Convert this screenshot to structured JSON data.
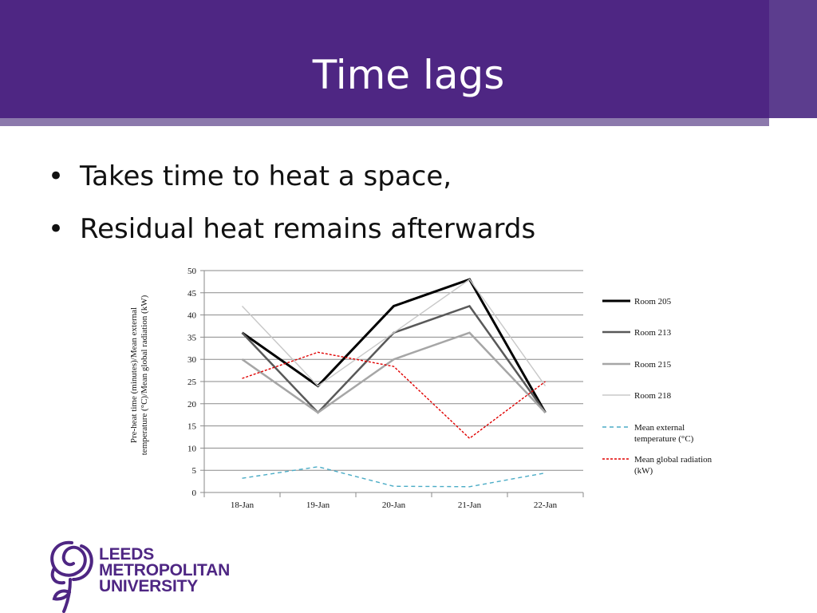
{
  "slide": {
    "title": "Time lags",
    "bullets": [
      "Takes time to heat a space,",
      "Residual heat remains afterwards"
    ]
  },
  "logo": {
    "lines": [
      "LEEDS",
      "METROPOLITAN",
      "UNIVERSITY"
    ]
  },
  "colors": {
    "header": "#4e2683",
    "accent_strip": "#8c79ac",
    "logo": "#4e2683"
  },
  "chart_data": {
    "type": "line",
    "categories": [
      "18-Jan",
      "19-Jan",
      "20-Jan",
      "21-Jan",
      "22-Jan"
    ],
    "ylabel_lines": [
      "Pre-heat time (minutes)/Mean external",
      "temperature (°C)/Mean global radiation (kW)"
    ],
    "ylim": [
      0,
      50
    ],
    "yticks": [
      0,
      5,
      10,
      15,
      20,
      25,
      30,
      35,
      40,
      45,
      50
    ],
    "grid": true,
    "legend_position": "right",
    "series": [
      {
        "name": "Room 205",
        "values": [
          36,
          24,
          42,
          48,
          18
        ],
        "color": "#000000",
        "dash": "solid",
        "width": "thick"
      },
      {
        "name": "Room 213",
        "values": [
          36,
          18,
          36,
          42,
          18
        ],
        "color": "#595959",
        "dash": "solid",
        "width": "medium"
      },
      {
        "name": "Room 215",
        "values": [
          30,
          18,
          30,
          36,
          18
        ],
        "color": "#a6a6a6",
        "dash": "solid",
        "width": "medium"
      },
      {
        "name": "Room 218",
        "values": [
          42,
          24,
          36,
          48,
          24
        ],
        "color": "#c8c8c8",
        "dash": "solid",
        "width": "thin"
      },
      {
        "name": "Mean external temperature (°C)",
        "name_lines": [
          "Mean external",
          "temperature (°C)"
        ],
        "values": [
          3.2,
          5.8,
          1.4,
          1.3,
          4.4
        ],
        "color": "#4bacc6",
        "dash": "dashed",
        "width": "thin"
      },
      {
        "name": "Mean global radiation (kW)",
        "name_lines": [
          "Mean global radiation",
          "(kW)"
        ],
        "values": [
          25.7,
          31.6,
          28.4,
          12.2,
          25
        ],
        "color": "#e00000",
        "dash": "dotted",
        "width": "thin"
      }
    ]
  }
}
